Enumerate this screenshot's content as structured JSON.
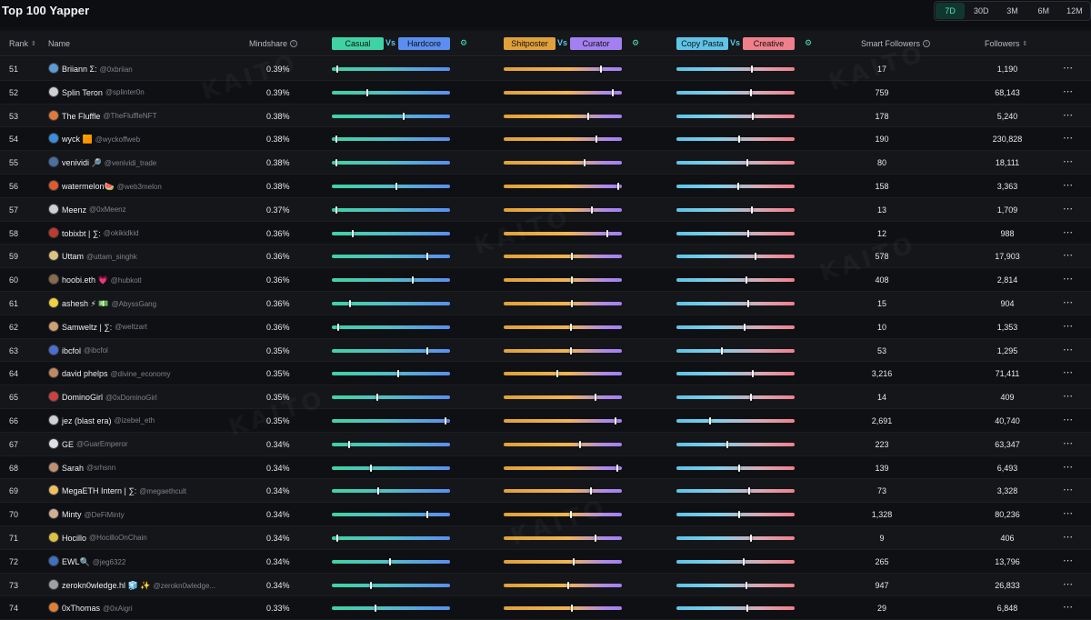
{
  "title": "Top 100 Yapper",
  "ranges": [
    {
      "label": "7D",
      "active": true
    },
    {
      "label": "30D",
      "active": false
    },
    {
      "label": "3M",
      "active": false
    },
    {
      "label": "6M",
      "active": false
    },
    {
      "label": "12M",
      "active": false
    }
  ],
  "headers": {
    "rank": "Rank",
    "name": "Name",
    "mindshare": "Mindshare",
    "casual": "Casual",
    "vs": "Vs",
    "hardcore": "Hardcore",
    "shitposter": "Shitposter",
    "curator": "Curator",
    "copy_pasta": "Copy Pasta",
    "creative": "Creative",
    "smart_followers": "Smart Followers",
    "followers": "Followers"
  },
  "colors": {
    "casual": "#3fd3a3",
    "hardcore": "#5b8ef0",
    "shitposter": "#e0a13a",
    "curator": "#a47ff0",
    "copy_pasta": "#5ec4e8",
    "creative": "#f07f8c",
    "active_range": "#4fe3b8"
  },
  "watermark": "KAITO",
  "rows": [
    {
      "rank": "51",
      "name": "Briiann Σ:",
      "handle": "@0xbriian",
      "mindshare": "0.39%",
      "casual": 0.04,
      "shit": 0.83,
      "copy": 0.64,
      "smart": "17",
      "followers": "1,190",
      "avatar": "#5b9bd5"
    },
    {
      "rank": "52",
      "name": "Splin Teron",
      "handle": "@splinter0n",
      "mindshare": "0.39%",
      "casual": 0.3,
      "shit": 0.93,
      "copy": 0.63,
      "smart": "759",
      "followers": "68,143",
      "avatar": "#d0d0d0"
    },
    {
      "rank": "53",
      "name": "The Fluffle",
      "handle": "@TheFluffleNFT",
      "mindshare": "0.38%",
      "casual": 0.61,
      "shit": 0.72,
      "copy": 0.65,
      "smart": "178",
      "followers": "5,240",
      "avatar": "#e07a3a"
    },
    {
      "rank": "54",
      "name": "wyck 🟧",
      "handle": "@wyckoffweb",
      "mindshare": "0.38%",
      "casual": 0.03,
      "shit": 0.79,
      "copy": 0.53,
      "smart": "190",
      "followers": "230,828",
      "avatar": "#3a8ee0"
    },
    {
      "rank": "55",
      "name": "venividi 🔎",
      "handle": "@venividi_trade",
      "mindshare": "0.38%",
      "casual": 0.03,
      "shit": 0.69,
      "copy": 0.6,
      "smart": "80",
      "followers": "18,111",
      "avatar": "#4a6fa0"
    },
    {
      "rank": "56",
      "name": "watermelon🍉",
      "handle": "@web3melon",
      "mindshare": "0.38%",
      "casual": 0.55,
      "shit": 0.98,
      "copy": 0.52,
      "smart": "158",
      "followers": "3,363",
      "avatar": "#e05a2a"
    },
    {
      "rank": "57",
      "name": "Meenz",
      "handle": "@0xMeenz",
      "mindshare": "0.37%",
      "casual": 0.03,
      "shit": 0.75,
      "copy": 0.64,
      "smart": "13",
      "followers": "1,709",
      "avatar": "#cfcfcf"
    },
    {
      "rank": "58",
      "name": "tobixbt | ∑:",
      "handle": "@okikidkid",
      "mindshare": "0.36%",
      "casual": 0.17,
      "shit": 0.88,
      "copy": 0.61,
      "smart": "12",
      "followers": "988",
      "avatar": "#c0392b"
    },
    {
      "rank": "59",
      "name": "Uttam",
      "handle": "@uttam_singhk",
      "mindshare": "0.36%",
      "casual": 0.81,
      "shit": 0.58,
      "copy": 0.67,
      "smart": "578",
      "followers": "17,903",
      "avatar": "#e0c080"
    },
    {
      "rank": "60",
      "name": "hoobi.eth 💗",
      "handle": "@hubkotl",
      "mindshare": "0.36%",
      "casual": 0.69,
      "shit": 0.58,
      "copy": 0.59,
      "smart": "408",
      "followers": "2,814",
      "avatar": "#8a6a4a"
    },
    {
      "rank": "61",
      "name": "ashesh ⚡ 💵",
      "handle": "@AbyssGang",
      "mindshare": "0.36%",
      "casual": 0.15,
      "shit": 0.58,
      "copy": 0.61,
      "smart": "15",
      "followers": "904",
      "avatar": "#f0d040"
    },
    {
      "rank": "62",
      "name": "Samweltz | ∑:",
      "handle": "@weltzart",
      "mindshare": "0.36%",
      "casual": 0.05,
      "shit": 0.57,
      "copy": 0.58,
      "smart": "10",
      "followers": "1,353",
      "avatar": "#d0a070"
    },
    {
      "rank": "63",
      "name": "ibcfol",
      "handle": "@ibcfol",
      "mindshare": "0.35%",
      "casual": 0.81,
      "shit": 0.57,
      "copy": 0.38,
      "smart": "53",
      "followers": "1,295",
      "avatar": "#4a6fd0"
    },
    {
      "rank": "64",
      "name": "david phelps",
      "handle": "@divine_economy",
      "mindshare": "0.35%",
      "casual": 0.56,
      "shit": 0.45,
      "copy": 0.65,
      "smart": "3,216",
      "followers": "71,411",
      "avatar": "#c08a60"
    },
    {
      "rank": "65",
      "name": "DominoGirl",
      "handle": "@0xDominoGirl",
      "mindshare": "0.35%",
      "casual": 0.38,
      "shit": 0.78,
      "copy": 0.63,
      "smart": "14",
      "followers": "409",
      "avatar": "#d04040"
    },
    {
      "rank": "66",
      "name": "jez (blast era)",
      "handle": "@izebel_eth",
      "mindshare": "0.35%",
      "casual": 0.97,
      "shit": 0.95,
      "copy": 0.28,
      "smart": "2,691",
      "followers": "40,740",
      "avatar": "#d0d0d0"
    },
    {
      "rank": "67",
      "name": "GE",
      "handle": "@GuarEmperor",
      "mindshare": "0.34%",
      "casual": 0.14,
      "shit": 0.65,
      "copy": 0.43,
      "smart": "223",
      "followers": "63,347",
      "avatar": "#e0e0e0"
    },
    {
      "rank": "68",
      "name": "Sarah",
      "handle": "@srhsnn",
      "mindshare": "0.34%",
      "casual": 0.33,
      "shit": 0.97,
      "copy": 0.53,
      "smart": "139",
      "followers": "6,493",
      "avatar": "#c09070"
    },
    {
      "rank": "69",
      "name": "MegaETH Intern | ∑:",
      "handle": "@megaethcult",
      "mindshare": "0.34%",
      "casual": 0.39,
      "shit": 0.74,
      "copy": 0.62,
      "smart": "73",
      "followers": "3,328",
      "avatar": "#f0c060"
    },
    {
      "rank": "70",
      "name": "Minty",
      "handle": "@DeFiMinty",
      "mindshare": "0.34%",
      "casual": 0.81,
      "shit": 0.57,
      "copy": 0.53,
      "smart": "1,328",
      "followers": "80,236",
      "avatar": "#d0b090"
    },
    {
      "rank": "71",
      "name": "Hocillo",
      "handle": "@HocilloOnChain",
      "mindshare": "0.34%",
      "casual": 0.04,
      "shit": 0.78,
      "copy": 0.63,
      "smart": "9",
      "followers": "406",
      "avatar": "#e0c040"
    },
    {
      "rank": "72",
      "name": "EWL🔍",
      "handle": "@jeg6322",
      "mindshare": "0.34%",
      "casual": 0.49,
      "shit": 0.59,
      "copy": 0.57,
      "smart": "265",
      "followers": "13,796",
      "avatar": "#4070c0"
    },
    {
      "rank": "73",
      "name": "zerokn0wledge.hl 🧊 ✨",
      "handle": "@zerokn0wledge...",
      "mindshare": "0.34%",
      "casual": 0.33,
      "shit": 0.55,
      "copy": 0.59,
      "smart": "947",
      "followers": "26,833",
      "avatar": "#a0a0a0"
    },
    {
      "rank": "74",
      "name": "0xThomas",
      "handle": "@0xAigri",
      "mindshare": "0.33%",
      "casual": 0.37,
      "shit": 0.58,
      "copy": 0.6,
      "smart": "29",
      "followers": "6,848",
      "avatar": "#e08030"
    }
  ]
}
